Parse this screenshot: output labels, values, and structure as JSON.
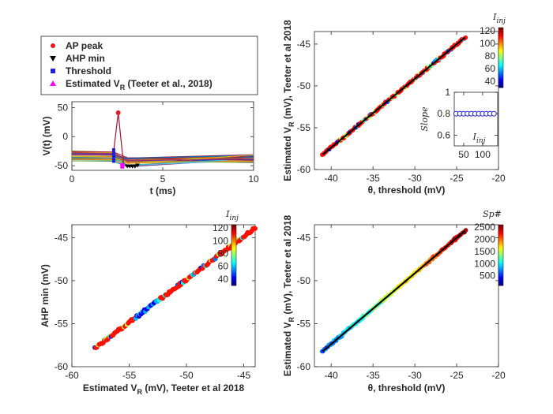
{
  "chart_data": [
    {
      "type": "legend",
      "entries": [
        {
          "label": "AP peak",
          "color": "#e41a1c",
          "marker": "circle"
        },
        {
          "label": "AHP min",
          "color": "#000000",
          "marker": "triangle-down"
        },
        {
          "label": "Threshold",
          "color": "#1f1fd6",
          "marker": "square"
        },
        {
          "label": "Estimated V",
          "sub": "R",
          "suffix": " (Teeter et al., 2018)",
          "color": "#ff00ff",
          "marker": "triangle-up"
        }
      ]
    },
    {
      "type": "line",
      "xlabel": "t (ms)",
      "ylabel": "V(t) (mV)",
      "xlim": [
        0,
        10
      ],
      "ylim": [
        -58,
        60
      ],
      "xticks": [
        0,
        5,
        10
      ],
      "yticks": [
        -50,
        0,
        50
      ],
      "spike": {
        "t_start": 2.3,
        "t_peak": 2.55,
        "t_end": 2.85,
        "peak": 41,
        "ahp": -50
      },
      "threshold_t": 2.3,
      "threshold_range": [
        -45,
        -20
      ],
      "vr_range": [
        -55,
        -46
      ]
    },
    {
      "type": "scatter",
      "xlabel": "θ, threshold (mV)",
      "ylabel": "Estimated V",
      "ylabel_sub": "R",
      "ylabel_suffix": " (mV), Teeter et al 2018",
      "xlim": [
        -42,
        -20
      ],
      "ylim": [
        -60,
        -43.5
      ],
      "xticks": [
        -40,
        -35,
        -30,
        -25,
        -20
      ],
      "yticks": [
        -60,
        -55,
        -50,
        -45
      ],
      "fit": {
        "x": [
          -41,
          -24
        ],
        "y": [
          -58.2,
          -44.2
        ]
      },
      "colorbar": {
        "label": "I",
        "sub": "inj",
        "ticks": [
          40,
          60,
          80,
          100,
          120
        ],
        "range": [
          30,
          125
        ]
      }
    },
    {
      "type": "scatter",
      "role": "inset",
      "xlabel": "I",
      "xlabel_sub": "inj",
      "ylabel": "Slope",
      "xlim": [
        25,
        140
      ],
      "ylim": [
        0.5,
        1.0
      ],
      "xticks": [
        50,
        100
      ],
      "yticks": [
        0.6,
        0.8,
        1
      ],
      "x": [
        30,
        40,
        50,
        60,
        70,
        80,
        90,
        100,
        110,
        120,
        130
      ],
      "y": [
        0.8,
        0.8,
        0.8,
        0.8,
        0.8,
        0.8,
        0.8,
        0.8,
        0.8,
        0.8,
        0.8
      ]
    },
    {
      "type": "scatter",
      "xlabel": "Estimated V",
      "xlabel_sub": "R",
      "xlabel_suffix": " (mV), Teeter et al 2018",
      "ylabel": "AHP min (mV)",
      "xlim": [
        -60,
        -44
      ],
      "ylim": [
        -60,
        -43.5
      ],
      "xticks": [
        -60,
        -55,
        -50,
        -45
      ],
      "yticks": [
        -60,
        -55,
        -50,
        -45
      ],
      "colorbar": {
        "label": "I",
        "sub": "inj",
        "ticks": [
          40,
          60,
          80,
          100,
          120
        ],
        "range": [
          30,
          125
        ]
      }
    },
    {
      "type": "scatter",
      "xlabel": "θ, threshold (mV)",
      "ylabel": "Estimated V",
      "ylabel_sub": "R",
      "ylabel_suffix": " (mV), Teeter et al 2018",
      "xlim": [
        -42,
        -20
      ],
      "ylim": [
        -60,
        -43.5
      ],
      "xticks": [
        -40,
        -35,
        -30,
        -25,
        -20
      ],
      "yticks": [
        -60,
        -55,
        -50,
        -45
      ],
      "fit": {
        "x": [
          -41,
          -24
        ],
        "y": [
          -58.2,
          -44.2
        ]
      },
      "colorbar": {
        "label": "Sp#",
        "ticks": [
          500,
          1000,
          1500,
          2000,
          2500
        ],
        "range": [
          100,
          2600
        ]
      }
    }
  ]
}
